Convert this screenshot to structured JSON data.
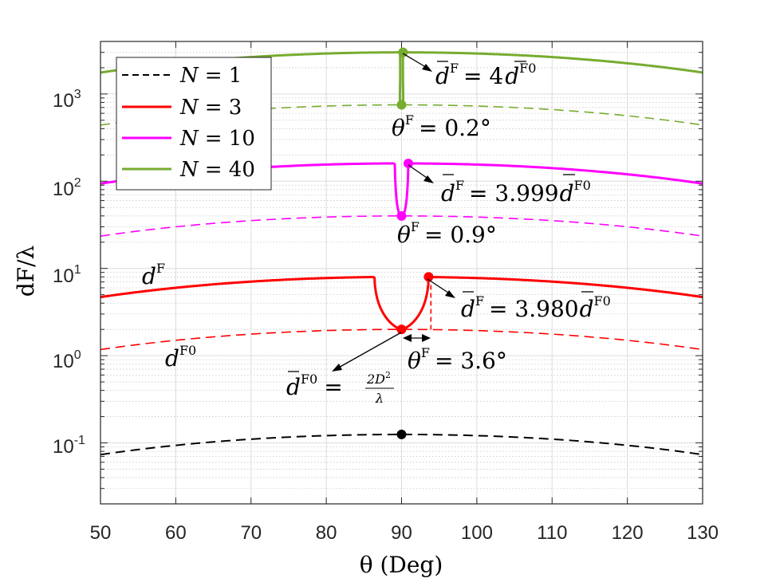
{
  "chart_data": {
    "type": "line",
    "yscale": "log",
    "xlim": [
      50,
      130
    ],
    "ylim": [
      0.02,
      4000
    ],
    "xticks": [
      50,
      60,
      70,
      80,
      90,
      100,
      110,
      120,
      130
    ],
    "xtick_labels": [
      "50",
      "60",
      "70",
      "80",
      "90",
      "100",
      "110",
      "120",
      "130"
    ],
    "ytick_labels": [
      {
        "value": 0.1,
        "base": "10",
        "exp": "-1"
      },
      {
        "value": 1,
        "base": "10",
        "exp": "0"
      },
      {
        "value": 10,
        "base": "10",
        "exp": "1"
      },
      {
        "value": 100,
        "base": "10",
        "exp": "2"
      },
      {
        "value": 1000,
        "base": "10",
        "exp": "3"
      }
    ],
    "xlabel": "θ (Deg)",
    "ylabel": "dF/λ",
    "grid": true,
    "legend_position": "top-left",
    "series": [
      {
        "name": "N = 1",
        "label": "N",
        "value_text": "= 1",
        "color": "#000000",
        "style": "dashed",
        "peak_d": 0.125,
        "dF0_peak": 0.125,
        "gap_half_width_deg": 0
      },
      {
        "name": "N = 3",
        "label": "N",
        "value_text": "= 3",
        "color": "#ff0000",
        "style": "solid",
        "peak_d": 8.0,
        "dF0_peak": 2.0,
        "gap_half_width_deg": 3.6
      },
      {
        "name": "N = 10",
        "label": "N",
        "value_text": "= 10",
        "color": "#ff00ff",
        "style": "solid",
        "peak_d": 160,
        "dF0_peak": 40,
        "gap_half_width_deg": 0.9
      },
      {
        "name": "N = 40",
        "label": "N",
        "value_text": "= 40",
        "color": "#77ac30",
        "style": "solid",
        "peak_d": 3000,
        "dF0_peak": 750,
        "gap_half_width_deg": 0.2
      }
    ],
    "points": [
      {
        "series": "N = 1",
        "x": 90,
        "y": 0.125
      },
      {
        "series": "N = 3",
        "x": 90,
        "y": 2.0
      },
      {
        "series": "N = 3",
        "x": 93.6,
        "y": 8.0
      },
      {
        "series": "N = 10",
        "x": 90,
        "y": 40
      },
      {
        "series": "N = 10",
        "x": 90.9,
        "y": 160
      },
      {
        "series": "N = 40",
        "x": 90,
        "y": 750
      },
      {
        "series": "N = 40",
        "x": 90.2,
        "y": 3000
      }
    ],
    "annotations": {
      "n40_ratio": {
        "lhs": "d",
        "lhs_sup": "F",
        "eq": "= 4",
        "rhs": "d",
        "rhs_sup": "F0"
      },
      "n40_theta": {
        "sym": "θ",
        "sup": "F",
        "text": "= 0.2°"
      },
      "n10_ratio": {
        "lhs": "d",
        "lhs_sup": "F",
        "eq": "= 3.999",
        "rhs": "d",
        "rhs_sup": "F0"
      },
      "n10_theta": {
        "sym": "θ",
        "sup": "F",
        "text": "= 0.9°"
      },
      "n3_ratio": {
        "lhs": "d",
        "lhs_sup": "F",
        "eq": "= 3.980",
        "rhs": "d",
        "rhs_sup": "F0"
      },
      "n3_theta": {
        "sym": "θ",
        "sup": "F",
        "text": "= 3.6°"
      },
      "dF_label": {
        "sym": "d",
        "sup": "F"
      },
      "dF0_label": {
        "sym": "d",
        "sup": "F0"
      },
      "rayleigh": {
        "lhs": "d",
        "lhs_sup": "F0",
        "eq": "=",
        "num": "2D",
        "num_sup": "2",
        "den": "λ"
      }
    }
  }
}
